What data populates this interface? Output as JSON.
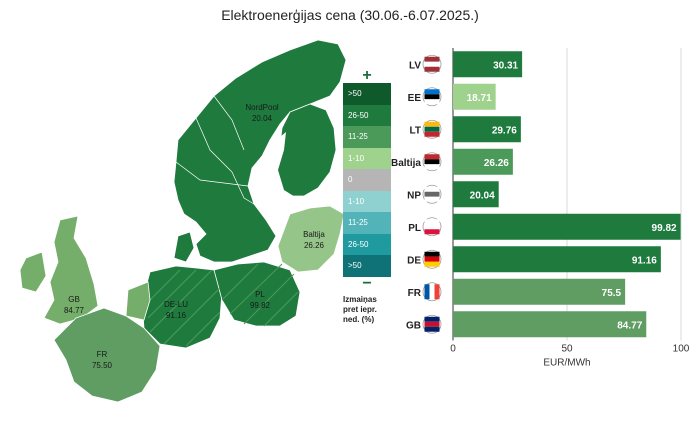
{
  "title": "Elektroenerģijas cena (30.06.-6.07.2025.)",
  "legend": {
    "plus": "+",
    "minus": "−",
    "items": [
      {
        "label": ">50",
        "color": "#0f5a2a"
      },
      {
        "label": "26-50",
        "color": "#1e7a3d"
      },
      {
        "label": "11-25",
        "color": "#4c9a5a"
      },
      {
        "label": "1-10",
        "color": "#9fd28c"
      },
      {
        "label": "0",
        "color": "#b5b5b5"
      },
      {
        "label": "1-10",
        "color": "#8fd0d0"
      },
      {
        "label": "11-25",
        "color": "#52b3b8"
      },
      {
        "label": "26-50",
        "color": "#1f9a9e"
      },
      {
        "label": ">50",
        "color": "#0e7276"
      }
    ],
    "note": "Izmaiņas pret iepr. ned. (%)"
  },
  "map_labels": [
    {
      "name": "NordPool",
      "value": "20.04"
    },
    {
      "name": "Baltija",
      "value": "26.26"
    },
    {
      "name": "GB",
      "value": "84.77"
    },
    {
      "name": "DE-LU",
      "value": "91.16"
    },
    {
      "name": "PL",
      "value": "99.82"
    },
    {
      "name": "FR",
      "value": "75.50"
    }
  ],
  "chart_data": {
    "type": "bar",
    "orientation": "horizontal",
    "categories": [
      "LV",
      "EE",
      "LT",
      "Baltija",
      "NP",
      "PL",
      "DE",
      "FR",
      "GB"
    ],
    "values": [
      30.31,
      18.71,
      29.76,
      26.26,
      20.04,
      99.82,
      91.16,
      75.5,
      84.77
    ],
    "value_labels": [
      "30.31",
      "18.71",
      "29.76",
      "26.26",
      "20.04",
      "99.82",
      "91.16",
      "75.5",
      "84.77"
    ],
    "colors": [
      "#1e7a3d",
      "#9fd28c",
      "#1e7a3d",
      "#4c9a5a",
      "#1e7a3d",
      "#1e7a3d",
      "#1e7a3d",
      "#5f9d62",
      "#5f9d62"
    ],
    "xlim": [
      0,
      100
    ],
    "xticks": [
      "0",
      "50",
      "100"
    ],
    "xlabel": "EUR/MWh",
    "grid": true
  },
  "colors": {
    "map_dark": "#1e7a3d",
    "map_mid": "#4c9a5a",
    "map_light": "#75ad6a",
    "map_pale": "#96c58a"
  }
}
